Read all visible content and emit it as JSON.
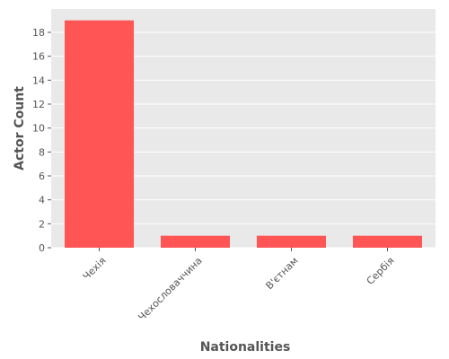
{
  "chart_data": {
    "type": "bar",
    "categories": [
      "Чехія",
      "Чехословаччина",
      "В'єтнам",
      "Сербія"
    ],
    "values": [
      19,
      1,
      1,
      1
    ],
    "title": "",
    "xlabel": "Nationalities",
    "ylabel": "Actor Count",
    "ylim": [
      0,
      19.95
    ],
    "yticks": [
      0,
      2,
      4,
      6,
      8,
      10,
      12,
      14,
      16,
      18
    ],
    "grid": true,
    "bar_color": "#ff5555",
    "background_color": "#e9e9e9",
    "grid_color": "#ffffff"
  }
}
